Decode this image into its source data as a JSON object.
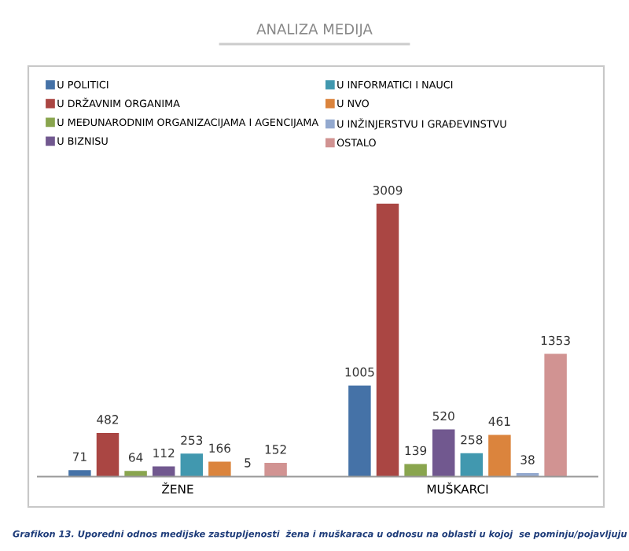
{
  "chart_data": {
    "type": "bar",
    "title": "ANALIZA MEDIJA",
    "categories": [
      "ŽENE",
      "MUŠKARCI"
    ],
    "series": [
      {
        "name": "U POLITICI",
        "color": "#4572a7",
        "values": [
          71,
          1005
        ]
      },
      {
        "name": "U DRŽAVNIM ORGANIMA",
        "color": "#aa4643",
        "values": [
          482,
          3009
        ]
      },
      {
        "name": "U MEĐUNARODNIM ORGANIZACIJAMA I AGENCIJAMA",
        "color": "#89a54e",
        "values": [
          64,
          139
        ]
      },
      {
        "name": "U BIZNISU",
        "color": "#71588f",
        "values": [
          112,
          520
        ]
      },
      {
        "name": "U INFORMATICI I NAUCI",
        "color": "#4198af",
        "values": [
          253,
          258
        ]
      },
      {
        "name": "U NVO",
        "color": "#db843d",
        "values": [
          166,
          461
        ]
      },
      {
        "name": "U INŽINJERSTVU I GRAĐEVINSTVU",
        "color": "#93a9cf",
        "values": [
          5,
          38
        ]
      },
      {
        "name": "OSTALO",
        "color": "#d19392",
        "values": [
          152,
          1353
        ]
      }
    ],
    "data_labels": true,
    "legend": "top",
    "grid": false,
    "annotations": [
      "Grafikon 13. Uporedni odnos medijske zastupljenosti  žena i muškaraca u odnosu na oblasti u kojoj  se pominju/pojavljuju"
    ]
  }
}
